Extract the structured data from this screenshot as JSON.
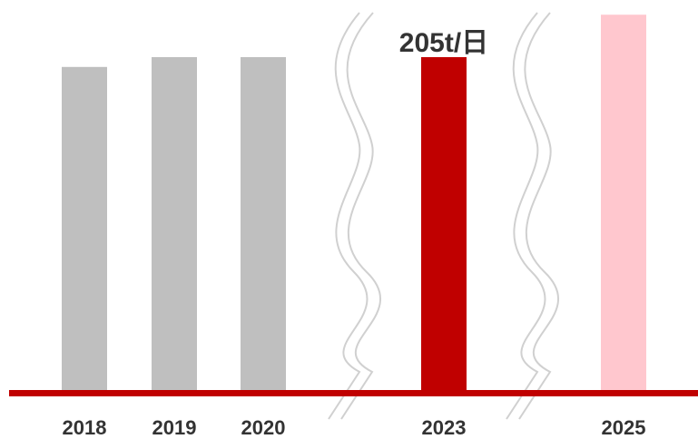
{
  "chart_data": {
    "type": "bar",
    "categories": [
      "2018",
      "2019",
      "2020",
      "2023",
      "2025"
    ],
    "values": [
      199,
      205,
      205,
      205,
      231
    ],
    "value_unit": "t/日",
    "data_labels": [
      {
        "category": "2023",
        "text": "205t/日"
      }
    ],
    "ylim": [
      0,
      240
    ],
    "axis_breaks_between": [
      [
        "2020",
        "2023"
      ],
      [
        "2023",
        "2025"
      ]
    ],
    "grid": false,
    "legend": null,
    "colors": {
      "2018": "#bfbfbf",
      "2019": "#bfbfbf",
      "2020": "#bfbfbf",
      "2023": "#c00000",
      "2025": "#ffc7ce",
      "axis_line": "#c00000",
      "break_marks": "#d0d0d0"
    }
  }
}
